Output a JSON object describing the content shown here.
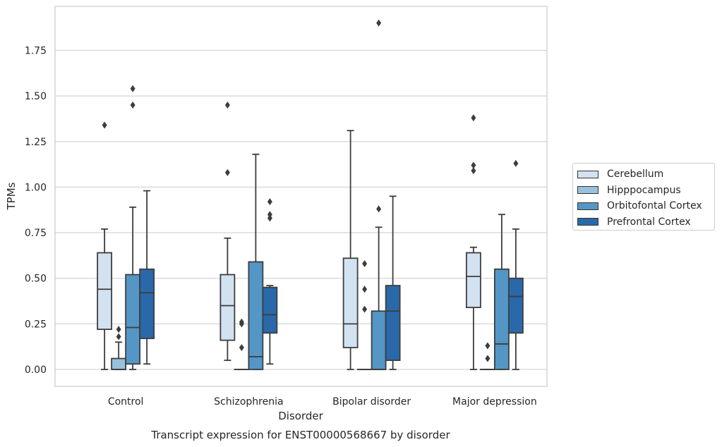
{
  "chart_data": {
    "type": "box",
    "title": "Transcript expression for ENST00000568667 by disorder",
    "xlabel": "Disorder",
    "ylabel": "TPMs",
    "ylim": [
      -0.09,
      1.99
    ],
    "yticks": [
      "0.00",
      "0.25",
      "0.50",
      "0.75",
      "1.00",
      "1.25",
      "1.50",
      "1.75"
    ],
    "grid": "horizontal",
    "legend_position": "right",
    "categories": [
      "Control",
      "Schizophrenia",
      "Bipolar disorder",
      "Major depression"
    ],
    "series": [
      {
        "name": "Cerebellum",
        "color": "#d2e2f1",
        "boxes": [
          {
            "min": 0.0,
            "q1": 0.22,
            "median": 0.44,
            "q3": 0.64,
            "max": 0.77,
            "outliers": [
              1.34
            ]
          },
          {
            "min": 0.05,
            "q1": 0.16,
            "median": 0.35,
            "q3": 0.52,
            "max": 0.72,
            "outliers": [
              1.08,
              1.45
            ]
          },
          {
            "min": 0.0,
            "q1": 0.12,
            "median": 0.25,
            "q3": 0.61,
            "max": 1.31,
            "outliers": []
          },
          {
            "min": 0.0,
            "q1": 0.34,
            "median": 0.51,
            "q3": 0.64,
            "max": 0.67,
            "outliers": [
              1.09,
              1.12,
              1.38
            ]
          }
        ]
      },
      {
        "name": "Hipppocampus",
        "color": "#9ac1dc",
        "boxes": [
          {
            "min": 0.0,
            "q1": 0.0,
            "median": 0.0,
            "q3": 0.06,
            "max": 0.15,
            "outliers": [
              0.18,
              0.22
            ]
          },
          {
            "min": 0.0,
            "q1": 0.0,
            "median": 0.0,
            "q3": 0.0,
            "max": 0.0,
            "outliers": [
              0.12,
              0.25,
              0.26
            ]
          },
          {
            "min": 0.0,
            "q1": 0.0,
            "median": 0.0,
            "q3": 0.0,
            "max": 0.0,
            "outliers": [
              0.33,
              0.44,
              0.58
            ]
          },
          {
            "min": 0.0,
            "q1": 0.0,
            "median": 0.0,
            "q3": 0.0,
            "max": 0.0,
            "outliers": [
              0.06,
              0.13
            ]
          }
        ]
      },
      {
        "name": "Orbitofontal Cortex",
        "color": "#5496c6",
        "boxes": [
          {
            "min": 0.0,
            "q1": 0.03,
            "median": 0.23,
            "q3": 0.52,
            "max": 0.89,
            "outliers": [
              1.45,
              1.54
            ]
          },
          {
            "min": 0.0,
            "q1": 0.0,
            "median": 0.07,
            "q3": 0.59,
            "max": 1.18,
            "outliers": []
          },
          {
            "min": 0.0,
            "q1": 0.0,
            "median": 0.0,
            "q3": 0.32,
            "max": 0.78,
            "outliers": [
              0.88,
              1.9
            ]
          },
          {
            "min": 0.0,
            "q1": 0.0,
            "median": 0.14,
            "q3": 0.55,
            "max": 0.85,
            "outliers": []
          }
        ]
      },
      {
        "name": "Prefrontal Cortex",
        "color": "#2969aa",
        "boxes": [
          {
            "min": 0.03,
            "q1": 0.17,
            "median": 0.42,
            "q3": 0.55,
            "max": 0.98,
            "outliers": []
          },
          {
            "min": 0.03,
            "q1": 0.2,
            "median": 0.3,
            "q3": 0.45,
            "max": 0.46,
            "outliers": [
              0.83,
              0.85,
              0.92
            ]
          },
          {
            "min": 0.0,
            "q1": 0.05,
            "median": 0.32,
            "q3": 0.46,
            "max": 0.95,
            "outliers": []
          },
          {
            "min": 0.0,
            "q1": 0.2,
            "median": 0.4,
            "q3": 0.5,
            "max": 0.77,
            "outliers": [
              1.13
            ]
          }
        ]
      }
    ]
  }
}
